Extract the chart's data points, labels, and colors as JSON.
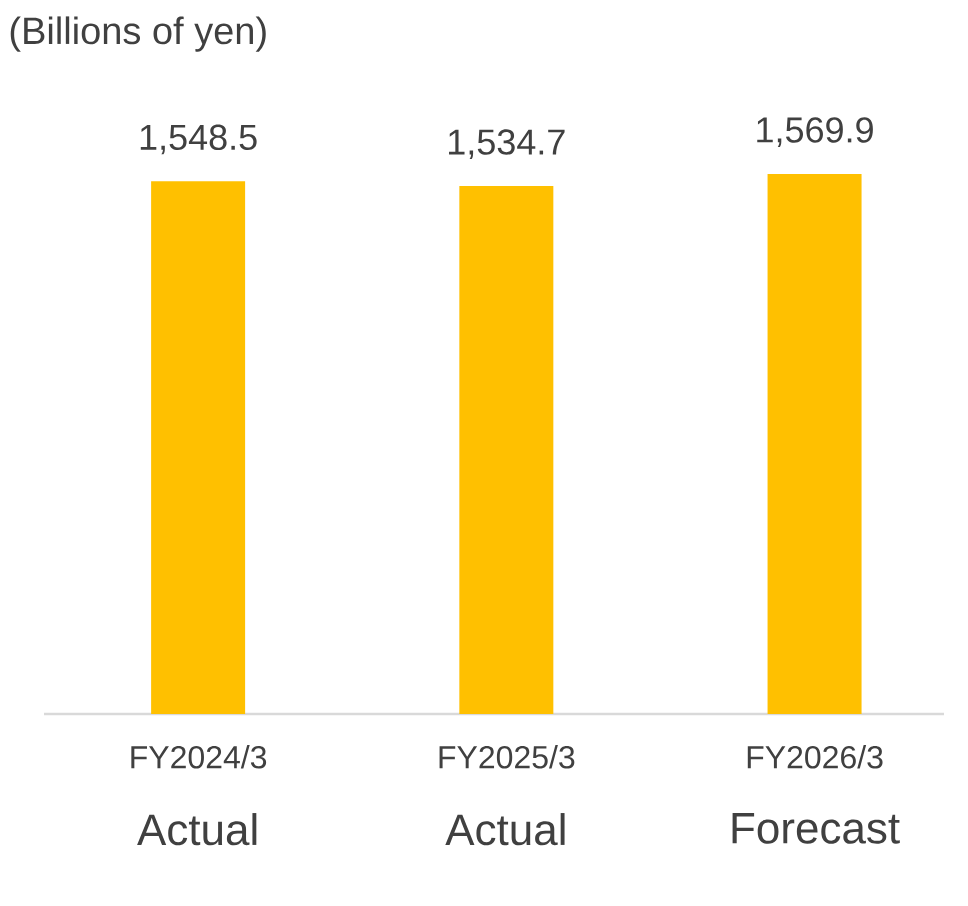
{
  "chart_data": {
    "type": "bar",
    "title": "(Billions of yen)",
    "categories": [
      "FY2024/3",
      "FY2025/3",
      "FY2026/3"
    ],
    "values": [
      1548.5,
      1534.7,
      1569.9
    ],
    "value_labels": [
      "1,548.5",
      "1,534.7",
      "1,569.9"
    ],
    "color": "#ffc000",
    "annotations": [
      "Actual",
      "Actual",
      "Forecast"
    ]
  }
}
